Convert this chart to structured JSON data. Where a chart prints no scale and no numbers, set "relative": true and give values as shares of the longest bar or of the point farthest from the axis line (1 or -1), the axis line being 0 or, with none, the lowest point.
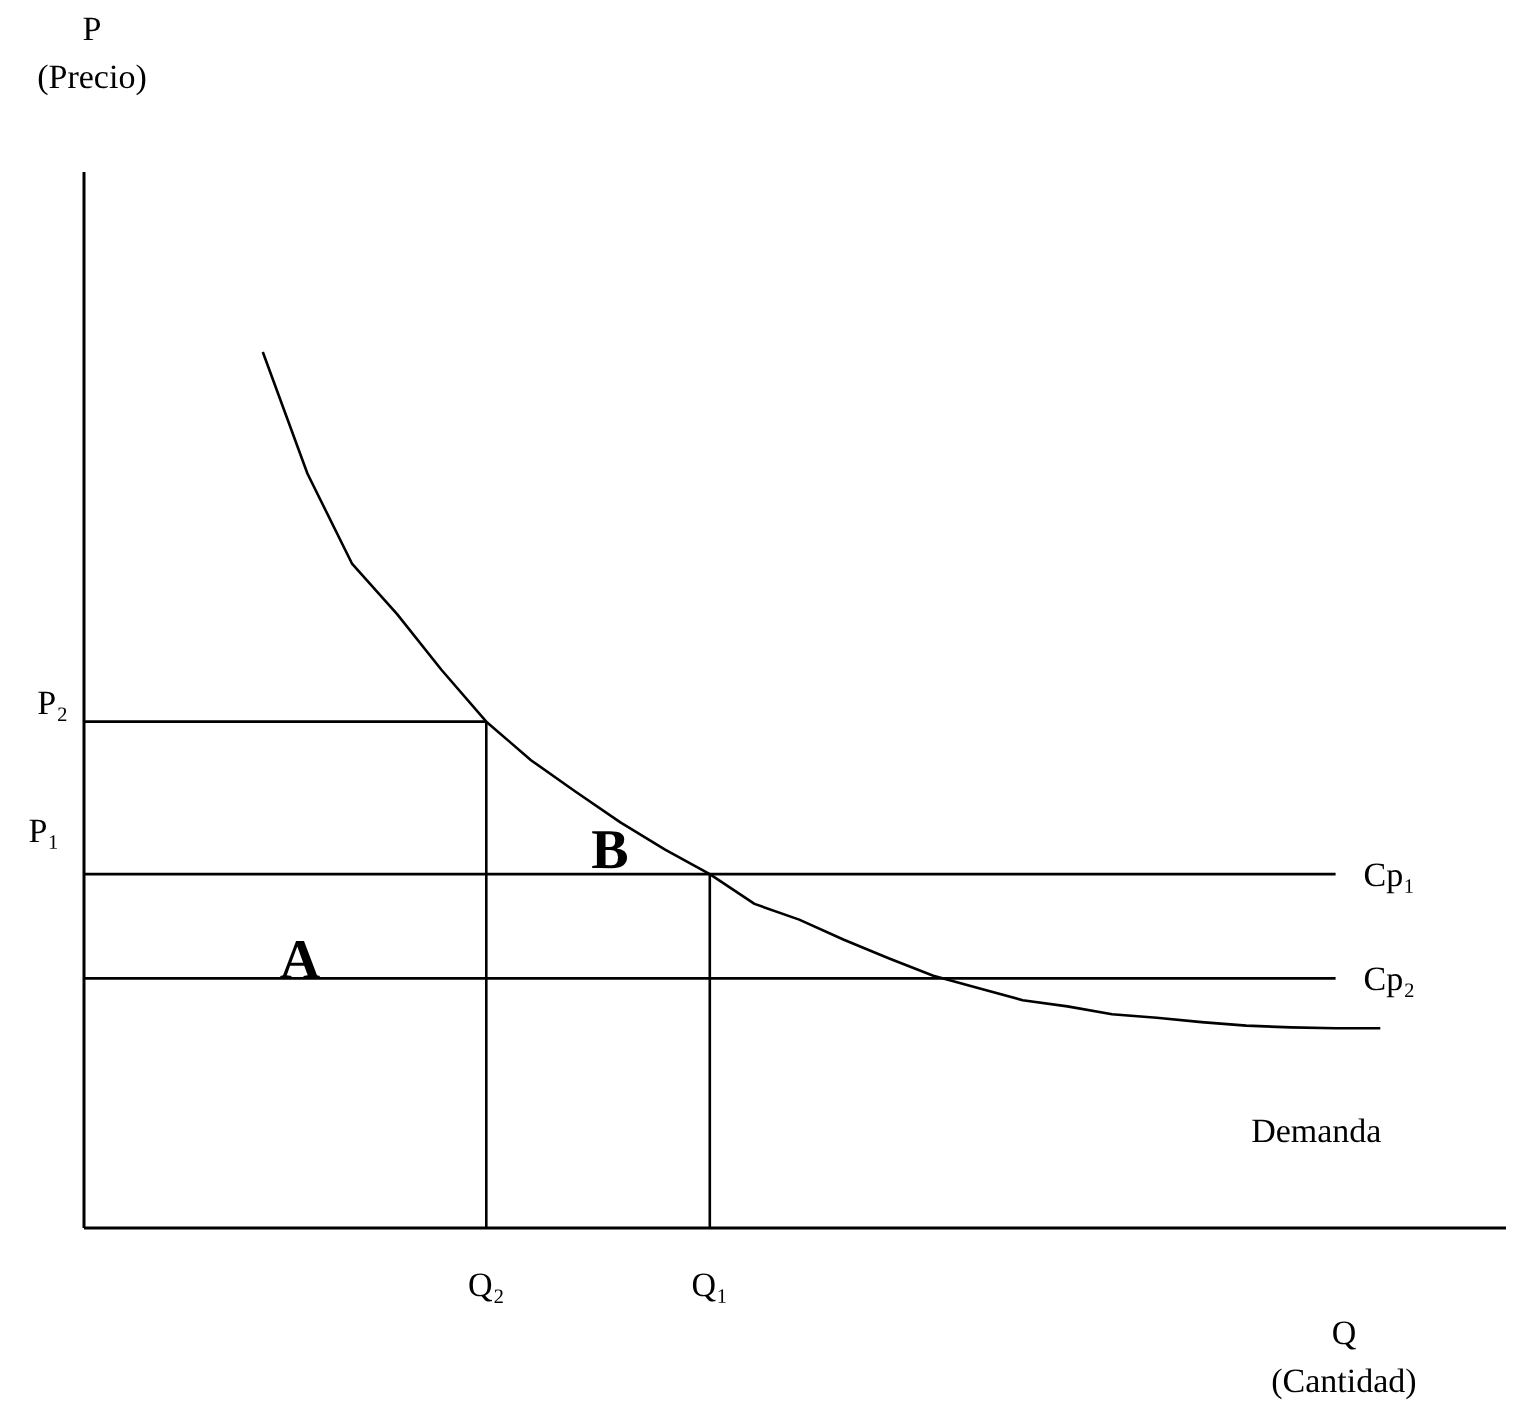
{
  "chart_data": {
    "type": "line",
    "relative": true,
    "xlabel": "Q (Cantidad)",
    "marker": "none",
    "line_style": "solid",
    "categories": [
      null,
      null,
      null,
      null,
      null,
      null,
      null,
      null,
      null,
      "Q₂",
      null,
      null,
      null,
      null,
      "Q₁",
      null,
      null,
      null,
      null,
      null,
      null,
      null,
      null,
      null,
      null,
      null,
      null,
      null,
      null,
      null,
      null,
      null
    ],
    "series": [
      {
        "name": "Demanda",
        "color": "#000000",
        "values": [
          null,
          null,
          null,
          null,
          1,
          0.861,
          0.758,
          0.701,
          0.637,
          0.578,
          0.534,
          0.498,
          0.463,
          0.432,
          0.404,
          0.37,
          0.352,
          0.329,
          0.308,
          0.288,
          0.274,
          0.26,
          0.253,
          0.244,
          0.24,
          0.235,
          0.231,
          0.229,
          0.228,
          0.228,
          null,
          null
        ]
      },
      {
        "name": "Cp₁",
        "color": "#000000",
        "values": [
          0.404,
          0.404,
          0.404,
          0.404,
          0.404,
          0.404,
          0.404,
          0.404,
          0.404,
          0.404,
          0.404,
          0.404,
          0.404,
          0.404,
          0.404,
          0.404,
          0.404,
          0.404,
          0.404,
          0.404,
          0.404,
          0.404,
          0.404,
          0.404,
          0.404,
          0.404,
          0.404,
          0.404,
          0.404,
          null,
          null,
          null
        ]
      },
      {
        "name": "Cp₂",
        "color": "#000000",
        "values": [
          0.285,
          0.285,
          0.285,
          0.285,
          0.285,
          0.285,
          0.285,
          0.285,
          0.285,
          0.285,
          0.285,
          0.285,
          0.285,
          0.285,
          0.285,
          0.285,
          0.285,
          0.285,
          0.285,
          0.285,
          0.285,
          0.285,
          0.285,
          0.285,
          0.285,
          0.285,
          0.285,
          0.285,
          0.285,
          null,
          null,
          null
        ]
      }
    ],
    "ref_lines": [
      {
        "axis": "y",
        "value": 0.578,
        "label": "P₂",
        "color": "#000000"
      },
      {
        "axis": "x",
        "value": "Q₂",
        "color": "#000000"
      },
      {
        "axis": "x",
        "value": "Q₁",
        "color": "#000000"
      }
    ],
    "annotations": [
      "P (Precio)",
      "P₁",
      "A",
      "B"
    ]
  }
}
